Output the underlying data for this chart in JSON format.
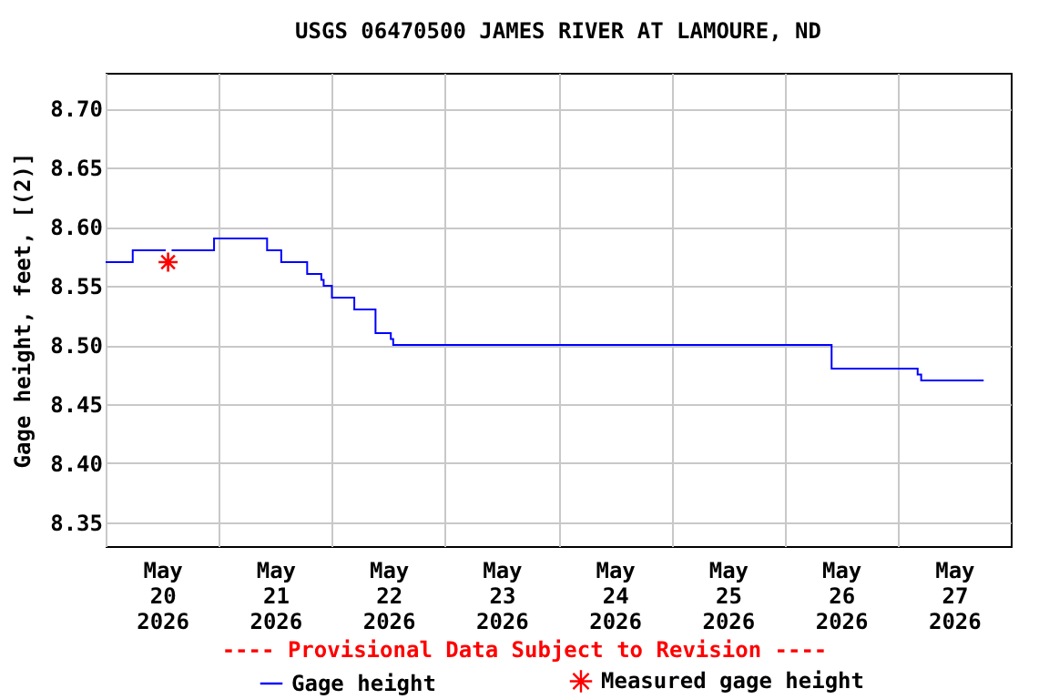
{
  "chart_data": {
    "type": "step",
    "title": "USGS 06470500 JAMES RIVER AT LAMOURE, ND",
    "ylabel": "Gage height, feet, [(2)]",
    "annotations": [
      "---- Provisional Data Subject to Revision ----"
    ],
    "xlim": [
      "2026-05-20T00:00",
      "2026-05-28T00:00"
    ],
    "xticks": [
      {
        "value": "2026-05-20T12:00",
        "label": "May\n20\n2026"
      },
      {
        "value": "2026-05-21T00:00",
        "label": null
      },
      {
        "value": "2026-05-21T12:00",
        "label": "May\n21\n2026"
      },
      {
        "value": "2026-05-22T00:00",
        "label": null
      },
      {
        "value": "2026-05-22T12:00",
        "label": "May\n22\n2026"
      },
      {
        "value": "2026-05-23T00:00",
        "label": null
      },
      {
        "value": "2026-05-23T12:00",
        "label": "May\n23\n2026"
      },
      {
        "value": "2026-05-24T00:00",
        "label": null
      },
      {
        "value": "2026-05-24T12:00",
        "label": "May\n24\n2026"
      },
      {
        "value": "2026-05-25T00:00",
        "label": null
      },
      {
        "value": "2026-05-25T12:00",
        "label": "May\n25\n2026"
      },
      {
        "value": "2026-05-26T00:00",
        "label": null
      },
      {
        "value": "2026-05-26T12:00",
        "label": "May\n26\n2026"
      },
      {
        "value": "2026-05-27T00:00",
        "label": null
      },
      {
        "value": "2026-05-27T12:00",
        "label": "May\n27\n2026"
      }
    ],
    "ylim": [
      8.33,
      8.73
    ],
    "yticks": [
      {
        "value": 8.35,
        "label": "8.35"
      },
      {
        "value": 8.4,
        "label": "8.40"
      },
      {
        "value": 8.45,
        "label": "8.45"
      },
      {
        "value": 8.5,
        "label": "8.50"
      },
      {
        "value": 8.55,
        "label": "8.55"
      },
      {
        "value": 8.6,
        "label": "8.60"
      },
      {
        "value": 8.65,
        "label": "8.65"
      },
      {
        "value": 8.7,
        "label": "8.70"
      }
    ],
    "grid": true,
    "legend": "bottom",
    "series": [
      {
        "name": "Gage height",
        "color": "#0000ff",
        "x": [
          "2026-05-20T00:00",
          "2026-05-20T05:45",
          "2026-05-20T12:45",
          "2026-05-20T13:00",
          "2026-05-20T14:00",
          "2026-05-20T23:00",
          "2026-05-21T10:15",
          "2026-05-21T13:15",
          "2026-05-21T18:45",
          "2026-05-21T21:45",
          "2026-05-21T22:15",
          "2026-05-22T00:00",
          "2026-05-22T04:45",
          "2026-05-22T09:15",
          "2026-05-22T12:30",
          "2026-05-22T13:00",
          "2026-05-26T10:00",
          "2026-05-27T04:15",
          "2026-05-27T05:00",
          "2026-05-27T18:15"
        ],
        "values": [
          8.57,
          8.58,
          8.58,
          null,
          8.58,
          8.59,
          8.58,
          8.57,
          8.56,
          8.555,
          8.55,
          8.54,
          8.53,
          8.51,
          8.505,
          8.5,
          8.48,
          8.475,
          8.47,
          8.47
        ]
      },
      {
        "name": "Measured gage height",
        "type": "scatter",
        "marker": "cross",
        "color": "#ff0000",
        "x": [
          "2026-05-20T13:15"
        ],
        "values": [
          8.57
        ]
      }
    ]
  }
}
